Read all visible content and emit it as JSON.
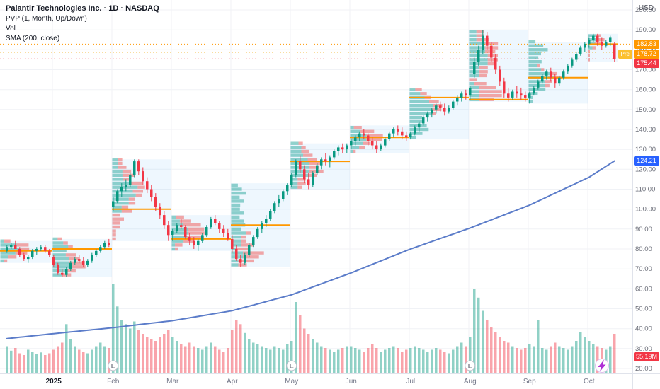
{
  "header": {
    "symbol_title": "Palantir Technologies Inc. · 1D · NASDAQ",
    "indicators": [
      "PVP (1, Month, Up/Down)",
      "Vol",
      "SMA (200, close)"
    ],
    "currency": "USD"
  },
  "price_axis": {
    "ticks": [
      "200.00",
      "190.00",
      "180.00",
      "170.00",
      "160.00",
      "150.00",
      "140.00",
      "130.00",
      "120.00",
      "110.00",
      "100.00",
      "90.00",
      "80.00",
      "70.00",
      "60.00",
      "50.00",
      "40.00",
      "30.00",
      "20.00"
    ],
    "badges": {
      "poc": "182.83",
      "pre_label": "Pre",
      "pre": "178.72",
      "last": "175.44",
      "sma": "124.21",
      "volume": "55.19M"
    }
  },
  "chart_data": {
    "type": "candlestick",
    "symbol": "Palantir Technologies Inc.",
    "interval": "1D",
    "exchange": "NASDAQ",
    "ylim": [
      20,
      200
    ],
    "grid": true,
    "colors": {
      "up": "#089981",
      "down": "#f23645",
      "sma": "#5b7cc9",
      "poc": "#ff9800",
      "profile_up": "rgba(38,166,154,0.5)",
      "profile_down": "rgba(239,83,80,0.5)",
      "box": "rgba(33,150,243,0.08)",
      "vol_up": "rgba(8,153,129,0.45)",
      "vol_down": "rgba(242,54,69,0.45)"
    },
    "last": {
      "close": 175.44,
      "pre": 178.72,
      "poc": 182.83,
      "volume": "55.19M"
    },
    "sma": {
      "period": 200,
      "last": 124.21,
      "anchors": [
        [
          0,
          35
        ],
        [
          11,
          37.5
        ],
        [
          25,
          40.5
        ],
        [
          39,
          44
        ],
        [
          53,
          49
        ],
        [
          67,
          57
        ],
        [
          81,
          68
        ],
        [
          95,
          80
        ],
        [
          109,
          90.5
        ],
        [
          123,
          102
        ],
        [
          137,
          116
        ],
        [
          143,
          124.21
        ]
      ]
    },
    "earnings": {
      "label": "E",
      "indexes": [
        25,
        67,
        109
      ]
    },
    "months": [
      {
        "label": "",
        "poc": 79,
        "candles": [
          [
            79,
            82,
            78,
            81,
            30
          ],
          [
            81,
            83,
            80,
            82,
            25
          ],
          [
            82,
            84,
            81,
            80,
            28
          ],
          [
            80,
            81,
            76,
            77,
            22
          ],
          [
            77,
            78,
            74,
            75,
            20
          ],
          [
            75,
            77,
            73,
            76,
            26
          ],
          [
            76,
            80,
            75,
            79,
            24
          ],
          [
            79,
            81,
            77,
            80,
            21
          ],
          [
            80,
            82,
            79,
            81,
            23
          ],
          [
            81,
            82,
            78,
            79,
            20
          ],
          [
            79,
            80,
            76,
            77,
            22
          ]
        ]
      },
      {
        "label": "2025",
        "year": true,
        "poc": 80,
        "candles": [
          [
            76,
            77,
            71,
            72,
            26
          ],
          [
            72,
            73,
            67,
            68,
            30
          ],
          [
            68,
            70,
            66,
            67,
            34
          ],
          [
            67,
            71,
            66,
            70,
            55
          ],
          [
            70,
            74,
            69,
            73,
            38
          ],
          [
            73,
            76,
            72,
            75,
            30
          ],
          [
            75,
            77,
            73,
            74,
            26
          ],
          [
            74,
            76,
            71,
            72,
            24
          ],
          [
            72,
            75,
            71,
            74,
            22
          ],
          [
            74,
            78,
            73,
            77,
            26
          ],
          [
            77,
            80,
            76,
            79,
            30
          ],
          [
            79,
            82,
            78,
            81,
            34
          ],
          [
            81,
            84,
            80,
            83,
            30
          ],
          [
            83,
            85,
            81,
            82,
            28
          ]
        ]
      },
      {
        "label": "Feb",
        "poc": 100,
        "candles": [
          [
            101,
            106,
            99,
            104,
            100
          ],
          [
            104,
            110,
            103,
            109,
            75
          ],
          [
            109,
            113,
            106,
            111,
            60
          ],
          [
            111,
            115,
            109,
            112,
            55
          ],
          [
            112,
            118,
            111,
            117,
            50
          ],
          [
            117,
            125,
            116,
            124,
            58
          ],
          [
            124,
            125,
            117,
            119,
            48
          ],
          [
            119,
            121,
            112,
            114,
            44
          ],
          [
            114,
            116,
            108,
            110,
            40
          ],
          [
            110,
            112,
            104,
            106,
            38
          ],
          [
            106,
            108,
            99,
            101,
            36
          ],
          [
            101,
            103,
            95,
            97,
            40
          ],
          [
            97,
            99,
            90,
            92,
            44
          ],
          [
            92,
            94,
            84,
            87,
            48
          ]
        ]
      },
      {
        "label": "Mar",
        "poc": 85,
        "candles": [
          [
            87,
            90,
            84,
            89,
            40
          ],
          [
            89,
            93,
            88,
            92,
            36
          ],
          [
            92,
            95,
            90,
            91,
            32
          ],
          [
            91,
            92,
            85,
            86,
            30
          ],
          [
            86,
            88,
            82,
            84,
            34
          ],
          [
            84,
            86,
            80,
            82,
            30
          ],
          [
            82,
            85,
            79,
            84,
            28
          ],
          [
            84,
            88,
            83,
            87,
            26
          ],
          [
            87,
            92,
            86,
            91,
            30
          ],
          [
            91,
            96,
            90,
            95,
            34
          ],
          [
            95,
            97,
            92,
            93,
            30
          ],
          [
            93,
            94,
            88,
            90,
            26
          ],
          [
            90,
            92,
            86,
            88,
            24
          ],
          [
            88,
            90,
            84,
            85,
            28
          ]
        ]
      },
      {
        "label": "Apr",
        "poc": 92,
        "candles": [
          [
            85,
            87,
            78,
            80,
            48
          ],
          [
            80,
            82,
            74,
            75,
            60
          ],
          [
            75,
            77,
            71,
            73,
            55
          ],
          [
            73,
            78,
            72,
            77,
            45
          ],
          [
            77,
            83,
            76,
            82,
            38
          ],
          [
            82,
            87,
            81,
            86,
            34
          ],
          [
            86,
            91,
            85,
            90,
            32
          ],
          [
            90,
            94,
            88,
            93,
            30
          ],
          [
            93,
            97,
            91,
            95,
            28
          ],
          [
            95,
            100,
            94,
            99,
            26
          ],
          [
            99,
            104,
            98,
            103,
            30
          ],
          [
            103,
            107,
            101,
            105,
            28
          ],
          [
            105,
            110,
            104,
            109,
            26
          ],
          [
            109,
            113,
            107,
            112,
            32
          ]
        ]
      },
      {
        "label": "May",
        "poc": 124,
        "candles": [
          [
            112,
            118,
            111,
            117,
            36
          ],
          [
            117,
            125,
            116,
            124,
            80
          ],
          [
            124,
            127,
            118,
            120,
            65
          ],
          [
            120,
            122,
            113,
            115,
            50
          ],
          [
            115,
            118,
            110,
            112,
            44
          ],
          [
            112,
            119,
            111,
            118,
            38
          ],
          [
            118,
            123,
            117,
            122,
            34
          ],
          [
            122,
            126,
            120,
            125,
            30
          ],
          [
            125,
            128,
            122,
            124,
            28
          ],
          [
            124,
            127,
            121,
            126,
            26
          ],
          [
            126,
            130,
            125,
            129,
            24
          ],
          [
            129,
            132,
            127,
            131,
            26
          ],
          [
            131,
            133,
            128,
            130,
            28
          ],
          [
            130,
            133,
            128,
            132,
            30
          ]
        ]
      },
      {
        "label": "Jun",
        "poc": 136,
        "candles": [
          [
            132,
            135,
            130,
            134,
            30
          ],
          [
            134,
            137,
            132,
            136,
            28
          ],
          [
            136,
            139,
            134,
            138,
            26
          ],
          [
            138,
            140,
            135,
            137,
            24
          ],
          [
            137,
            138,
            132,
            134,
            28
          ],
          [
            134,
            136,
            130,
            132,
            32
          ],
          [
            132,
            134,
            128,
            130,
            28
          ],
          [
            130,
            133,
            129,
            132,
            24
          ],
          [
            132,
            136,
            131,
            135,
            26
          ],
          [
            135,
            139,
            134,
            138,
            28
          ],
          [
            138,
            141,
            136,
            140,
            30
          ],
          [
            140,
            142,
            137,
            139,
            28
          ],
          [
            139,
            141,
            135,
            137,
            24
          ],
          [
            137,
            139,
            134,
            136,
            26
          ]
        ]
      },
      {
        "label": "Jul",
        "poc": 156,
        "candles": [
          [
            136,
            139,
            135,
            138,
            28
          ],
          [
            138,
            142,
            137,
            141,
            30
          ],
          [
            141,
            144,
            139,
            143,
            28
          ],
          [
            143,
            147,
            142,
            146,
            26
          ],
          [
            146,
            149,
            144,
            148,
            24
          ],
          [
            148,
            151,
            146,
            150,
            26
          ],
          [
            150,
            153,
            148,
            152,
            28
          ],
          [
            152,
            154,
            149,
            151,
            26
          ],
          [
            151,
            153,
            147,
            149,
            24
          ],
          [
            149,
            152,
            148,
            151,
            22
          ],
          [
            151,
            155,
            150,
            154,
            26
          ],
          [
            154,
            157,
            152,
            156,
            30
          ],
          [
            156,
            159,
            154,
            158,
            34
          ],
          [
            158,
            160,
            155,
            157,
            30
          ]
        ]
      },
      {
        "label": "Aug",
        "poc": 155,
        "candles": [
          [
            157,
            162,
            155,
            161,
            40
          ],
          [
            168,
            176,
            166,
            174,
            95
          ],
          [
            174,
            182,
            172,
            180,
            85
          ],
          [
            180,
            190,
            178,
            187,
            70
          ],
          [
            187,
            189,
            180,
            182,
            60
          ],
          [
            182,
            184,
            174,
            176,
            52
          ],
          [
            176,
            178,
            168,
            170,
            46
          ],
          [
            170,
            172,
            162,
            164,
            40
          ],
          [
            164,
            166,
            156,
            158,
            36
          ],
          [
            158,
            161,
            154,
            156,
            34
          ],
          [
            156,
            160,
            155,
            159,
            30
          ],
          [
            159,
            162,
            156,
            158,
            28
          ],
          [
            158,
            161,
            155,
            157,
            26
          ],
          [
            157,
            159,
            154,
            156,
            28
          ]
        ]
      },
      {
        "label": "Sep",
        "poc": 166,
        "candles": [
          [
            156,
            159,
            153,
            158,
            32
          ],
          [
            158,
            162,
            157,
            161,
            30
          ],
          [
            161,
            165,
            160,
            164,
            60
          ],
          [
            164,
            168,
            163,
            167,
            28
          ],
          [
            167,
            170,
            165,
            169,
            26
          ],
          [
            169,
            171,
            164,
            166,
            30
          ],
          [
            166,
            168,
            161,
            163,
            34
          ],
          [
            163,
            167,
            162,
            166,
            30
          ],
          [
            166,
            170,
            165,
            169,
            28
          ],
          [
            169,
            173,
            168,
            172,
            26
          ],
          [
            172,
            176,
            171,
            175,
            30
          ],
          [
            175,
            179,
            174,
            178,
            36
          ],
          [
            178,
            182,
            177,
            181,
            46
          ],
          [
            181,
            184,
            179,
            183,
            40
          ]
        ]
      },
      {
        "label": "Oct",
        "poc": 182.83,
        "candles": [
          [
            183,
            186,
            181,
            185,
            36
          ],
          [
            185,
            188,
            184,
            187,
            32
          ],
          [
            187,
            188,
            182,
            184,
            30
          ],
          [
            184,
            186,
            180,
            182,
            28
          ],
          [
            182,
            185,
            181,
            184,
            26
          ],
          [
            184,
            187,
            182,
            186,
            30
          ],
          [
            183,
            184,
            174,
            175.44,
            44
          ]
        ]
      }
    ]
  }
}
